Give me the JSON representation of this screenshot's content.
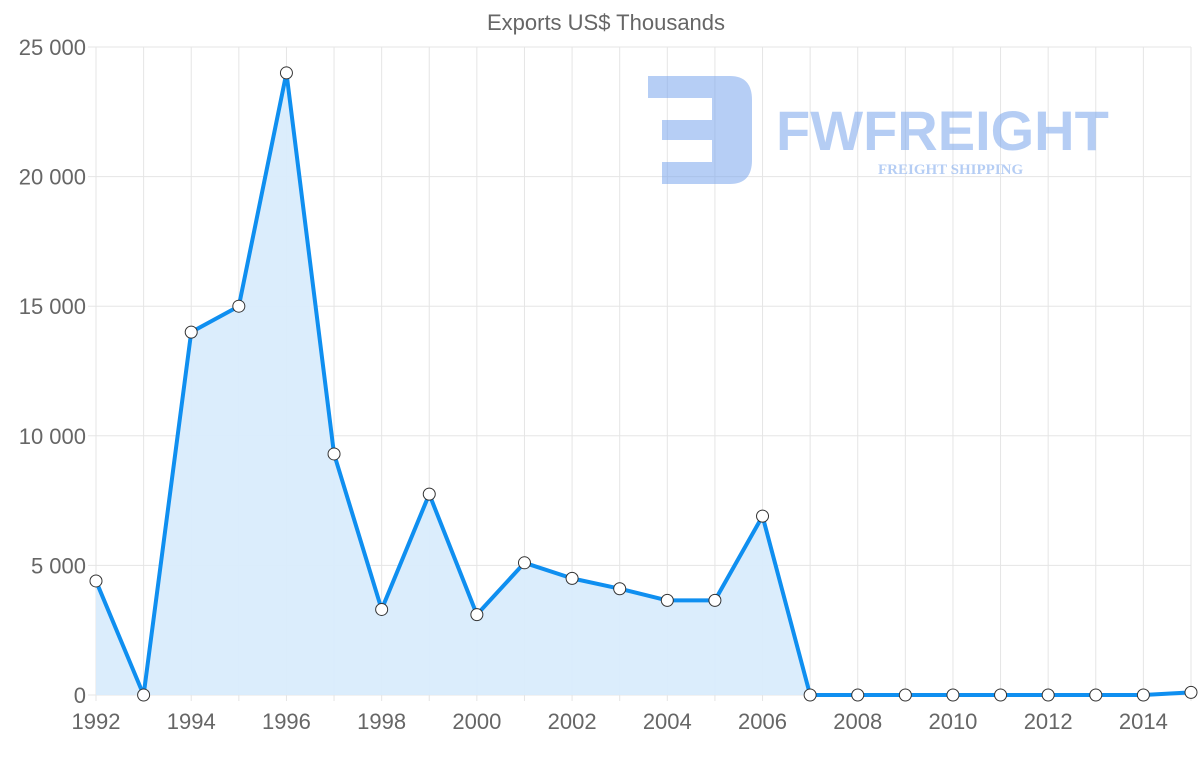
{
  "chart_data": {
    "type": "area",
    "title": "Exports US$ Thousands",
    "xlabel": "",
    "ylabel": "",
    "x": [
      1992,
      1993,
      1994,
      1995,
      1996,
      1997,
      1998,
      1999,
      2000,
      2001,
      2002,
      2003,
      2004,
      2005,
      2006,
      2007,
      2008,
      2009,
      2010,
      2011,
      2012,
      2013,
      2014,
      2015
    ],
    "series": [
      {
        "name": "Exports US$ Thousands",
        "values": [
          4400,
          0,
          14000,
          15000,
          24000,
          9300,
          3300,
          7750,
          3100,
          5100,
          4500,
          4100,
          3650,
          3650,
          6900,
          0,
          0,
          0,
          0,
          0,
          0,
          0,
          0,
          100
        ]
      }
    ],
    "ylim": [
      0,
      25000
    ],
    "yticks": [
      0,
      5000,
      10000,
      15000,
      20000,
      25000
    ],
    "ytick_labels": [
      "0",
      "5 000",
      "10 000",
      "15 000",
      "20 000",
      "25 000"
    ],
    "xtick_labels": [
      "1992",
      "1994",
      "1996",
      "1998",
      "2000",
      "2002",
      "2004",
      "2006",
      "2008",
      "2010",
      "2012",
      "2014"
    ],
    "grid": true,
    "legend": "none",
    "colors": {
      "line": "#0f8ff0",
      "fill": "#d9ecfc",
      "grid": "#e5e5e5",
      "watermark": "#7aa6ec"
    }
  },
  "watermark": {
    "brand": "FWFREIGHT",
    "tagline": "FREIGHT SHIPPING"
  }
}
